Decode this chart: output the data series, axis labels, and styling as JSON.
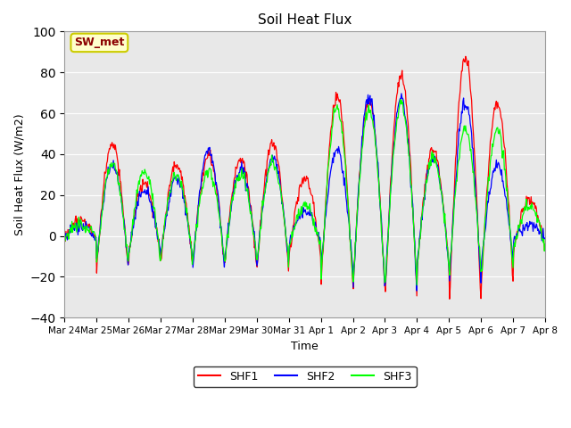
{
  "title": "Soil Heat Flux",
  "ylabel": "Soil Heat Flux (W/m2)",
  "xlabel": "Time",
  "ylim": [
    -40,
    100
  ],
  "yticks": [
    -40,
    -20,
    0,
    20,
    40,
    60,
    80,
    100
  ],
  "legend_labels": [
    "SHF1",
    "SHF2",
    "SHF3"
  ],
  "legend_colors": [
    "red",
    "blue",
    "lime"
  ],
  "annotation_text": "SW_met",
  "annotation_bg": "#ffffcc",
  "annotation_border": "#cccc00",
  "annotation_text_color": "#8b0000",
  "plot_bg": "#e8e8e8",
  "x_labels": [
    "Mar 24",
    "Mar 25",
    "Mar 26",
    "Mar 27",
    "Mar 28",
    "Mar 29",
    "Mar 30",
    "Mar 31",
    "Apr 1",
    "Apr 2",
    "Apr 3",
    "Apr 4",
    "Apr 5",
    "Apr 6",
    "Apr 7",
    "Apr 8"
  ],
  "num_days": 15,
  "points_per_day": 48,
  "day_amplitudes1": [
    8,
    45,
    25,
    35,
    40,
    38,
    45,
    28,
    68,
    65,
    78,
    42,
    88,
    65,
    18
  ],
  "day_amplitudes2": [
    5,
    35,
    22,
    28,
    42,
    32,
    38,
    12,
    42,
    68,
    68,
    38,
    65,
    35,
    5
  ],
  "day_amplitudes3": [
    6,
    35,
    32,
    30,
    32,
    30,
    35,
    15,
    62,
    62,
    65,
    38,
    52,
    52,
    15
  ]
}
